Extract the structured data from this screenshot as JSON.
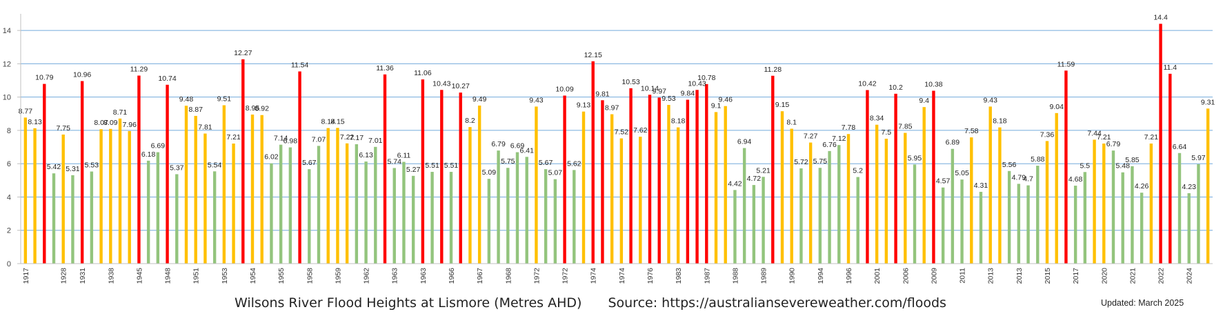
{
  "chart_data": {
    "type": "bar",
    "title": "Wilsons River Flood Heights at Lismore (Metres AHD)",
    "source": "Source: https://australiansevereweather.com/floods",
    "updated": "Updated: March 2025",
    "ylim": [
      0,
      15
    ],
    "yticks": [
      0,
      2,
      4,
      6,
      8,
      10,
      12,
      14
    ],
    "grid": true,
    "colors": {
      "minor": "#93c47d",
      "moderate": "#ffc000",
      "major": "#ff0000",
      "grid": "#5b9bd5"
    },
    "bars": [
      {
        "v": 8.77,
        "c": "moderate"
      },
      {
        "v": 8.13,
        "c": "moderate"
      },
      {
        "v": 10.79,
        "c": "major"
      },
      {
        "v": 5.42,
        "c": "minor"
      },
      {
        "v": 7.75,
        "c": "moderate"
      },
      {
        "v": 5.31,
        "c": "minor"
      },
      {
        "v": 10.96,
        "c": "major"
      },
      {
        "v": 5.53,
        "c": "minor"
      },
      {
        "v": 8.07,
        "c": "moderate"
      },
      {
        "v": 8.09,
        "c": "moderate"
      },
      {
        "v": 8.71,
        "c": "moderate"
      },
      {
        "v": 7.96,
        "c": "moderate"
      },
      {
        "v": 11.29,
        "c": "major"
      },
      {
        "v": 6.18,
        "c": "minor"
      },
      {
        "v": 6.69,
        "c": "minor"
      },
      {
        "v": 10.74,
        "c": "major"
      },
      {
        "v": 5.37,
        "c": "minor"
      },
      {
        "v": 9.48,
        "c": "moderate"
      },
      {
        "v": 8.87,
        "c": "moderate"
      },
      {
        "v": 7.81,
        "c": "moderate"
      },
      {
        "v": 5.54,
        "c": "minor"
      },
      {
        "v": 9.51,
        "c": "moderate"
      },
      {
        "v": 7.21,
        "c": "moderate"
      },
      {
        "v": 12.27,
        "c": "major"
      },
      {
        "v": 8.95,
        "c": "moderate"
      },
      {
        "v": 8.92,
        "c": "moderate"
      },
      {
        "v": 6.02,
        "c": "minor"
      },
      {
        "v": 7.14,
        "c": "minor"
      },
      {
        "v": 6.98,
        "c": "minor"
      },
      {
        "v": 11.54,
        "c": "major"
      },
      {
        "v": 5.67,
        "c": "minor"
      },
      {
        "v": 7.07,
        "c": "minor"
      },
      {
        "v": 8.14,
        "c": "moderate"
      },
      {
        "v": 8.15,
        "c": "moderate"
      },
      {
        "v": 7.22,
        "c": "moderate"
      },
      {
        "v": 7.17,
        "c": "minor"
      },
      {
        "v": 6.13,
        "c": "minor"
      },
      {
        "v": 7.01,
        "c": "minor"
      },
      {
        "v": 11.36,
        "c": "major"
      },
      {
        "v": 5.74,
        "c": "minor"
      },
      {
        "v": 6.11,
        "c": "minor"
      },
      {
        "v": 5.27,
        "c": "minor"
      },
      {
        "v": 11.06,
        "c": "major"
      },
      {
        "v": 5.51,
        "c": "minor"
      },
      {
        "v": 10.43,
        "c": "major"
      },
      {
        "v": 5.51,
        "c": "minor"
      },
      {
        "v": 10.27,
        "c": "major"
      },
      {
        "v": 8.2,
        "c": "moderate"
      },
      {
        "v": 9.49,
        "c": "moderate"
      },
      {
        "v": 5.09,
        "c": "minor"
      },
      {
        "v": 6.79,
        "c": "minor"
      },
      {
        "v": 5.75,
        "c": "minor"
      },
      {
        "v": 6.69,
        "c": "minor"
      },
      {
        "v": 6.41,
        "c": "minor"
      },
      {
        "v": 9.43,
        "c": "moderate"
      },
      {
        "v": 5.67,
        "c": "minor"
      },
      {
        "v": 5.07,
        "c": "minor"
      },
      {
        "v": 10.09,
        "c": "major"
      },
      {
        "v": 5.62,
        "c": "minor"
      },
      {
        "v": 9.13,
        "c": "moderate"
      },
      {
        "v": 12.15,
        "c": "major"
      },
      {
        "v": 9.81,
        "c": "major"
      },
      {
        "v": 8.97,
        "c": "moderate"
      },
      {
        "v": 7.52,
        "c": "moderate"
      },
      {
        "v": 10.53,
        "c": "major"
      },
      {
        "v": 7.62,
        "c": "moderate"
      },
      {
        "v": 10.14,
        "c": "major"
      },
      {
        "v": 9.97,
        "c": "major"
      },
      {
        "v": 9.53,
        "c": "moderate"
      },
      {
        "v": 8.18,
        "c": "moderate"
      },
      {
        "v": 9.84,
        "c": "major"
      },
      {
        "v": 10.43,
        "c": "major"
      },
      {
        "v": 10.78,
        "c": "major"
      },
      {
        "v": 9.1,
        "c": "moderate"
      },
      {
        "v": 9.46,
        "c": "moderate"
      },
      {
        "v": 4.42,
        "c": "minor"
      },
      {
        "v": 6.94,
        "c": "minor"
      },
      {
        "v": 4.72,
        "c": "minor"
      },
      {
        "v": 5.21,
        "c": "minor"
      },
      {
        "v": 11.28,
        "c": "major"
      },
      {
        "v": 9.15,
        "c": "moderate"
      },
      {
        "v": 8.1,
        "c": "moderate"
      },
      {
        "v": 5.72,
        "c": "minor"
      },
      {
        "v": 7.27,
        "c": "moderate"
      },
      {
        "v": 5.75,
        "c": "minor"
      },
      {
        "v": 6.76,
        "c": "minor"
      },
      {
        "v": 7.12,
        "c": "minor"
      },
      {
        "v": 7.78,
        "c": "moderate"
      },
      {
        "v": 5.2,
        "c": "minor"
      },
      {
        "v": 10.42,
        "c": "major"
      },
      {
        "v": 8.34,
        "c": "moderate"
      },
      {
        "v": 7.5,
        "c": "moderate"
      },
      {
        "v": 10.2,
        "c": "major"
      },
      {
        "v": 7.85,
        "c": "moderate"
      },
      {
        "v": 5.95,
        "c": "minor"
      },
      {
        "v": 9.4,
        "c": "moderate"
      },
      {
        "v": 10.38,
        "c": "major"
      },
      {
        "v": 4.57,
        "c": "minor"
      },
      {
        "v": 6.89,
        "c": "minor"
      },
      {
        "v": 5.05,
        "c": "minor"
      },
      {
        "v": 7.58,
        "c": "moderate"
      },
      {
        "v": 4.31,
        "c": "minor"
      },
      {
        "v": 9.43,
        "c": "moderate"
      },
      {
        "v": 8.18,
        "c": "moderate"
      },
      {
        "v": 5.56,
        "c": "minor"
      },
      {
        "v": 4.79,
        "c": "minor"
      },
      {
        "v": 4.7,
        "c": "minor"
      },
      {
        "v": 5.88,
        "c": "minor"
      },
      {
        "v": 7.36,
        "c": "moderate"
      },
      {
        "v": 9.04,
        "c": "moderate"
      },
      {
        "v": 11.59,
        "c": "major"
      },
      {
        "v": 4.68,
        "c": "minor"
      },
      {
        "v": 5.5,
        "c": "minor"
      },
      {
        "v": 7.44,
        "c": "moderate"
      },
      {
        "v": 7.21,
        "c": "moderate"
      },
      {
        "v": 6.79,
        "c": "minor"
      },
      {
        "v": 5.48,
        "c": "minor"
      },
      {
        "v": 5.85,
        "c": "minor"
      },
      {
        "v": 4.26,
        "c": "minor"
      },
      {
        "v": 7.21,
        "c": "moderate"
      },
      {
        "v": 14.4,
        "c": "major"
      },
      {
        "v": 11.4,
        "c": "major"
      },
      {
        "v": 6.64,
        "c": "minor"
      },
      {
        "v": 4.23,
        "c": "minor"
      },
      {
        "v": 5.97,
        "c": "minor"
      },
      {
        "v": 9.31,
        "c": "moderate"
      }
    ],
    "labels": [
      {
        "v": "8.77",
        "i": 0,
        "ha": "l"
      },
      {
        "v": "8.13",
        "i": 1
      },
      {
        "v": "10.79",
        "i": 2
      },
      {
        "v": "5.42",
        "i": 3
      },
      {
        "v": "7.75",
        "i": 4
      },
      {
        "v": "5.31",
        "i": 5
      },
      {
        "v": "10.96",
        "i": 6
      },
      {
        "v": "5.53",
        "i": 7
      },
      {
        "v": "8.07",
        "i": 8
      },
      {
        "v": "8.09",
        "i": 9
      },
      {
        "v": "8.71",
        "i": 10
      },
      {
        "v": "7.96",
        "i": 11
      },
      {
        "v": "11.29",
        "i": 12
      },
      {
        "v": "6.18",
        "i": 13
      },
      {
        "v": "6.69",
        "i": 14
      },
      {
        "v": "10.74",
        "i": 15
      },
      {
        "v": "5.37",
        "i": 16
      },
      {
        "v": "9.48",
        "i": 17
      },
      {
        "v": "8.87",
        "i": 18
      },
      {
        "v": "7.81",
        "i": 19
      },
      {
        "v": "5.54",
        "i": 20
      },
      {
        "v": "9.51",
        "i": 21
      },
      {
        "v": "7.21",
        "i": 22
      },
      {
        "v": "12.27",
        "i": 23
      },
      {
        "v": "8.95",
        "i": 24
      },
      {
        "v": "8.92",
        "i": 25
      },
      {
        "v": "6.02",
        "i": 26
      },
      {
        "v": "7.14",
        "i": 27
      },
      {
        "v": "6.98",
        "i": 28
      },
      {
        "v": "11.54",
        "i": 29
      },
      {
        "v": "5.67",
        "i": 30
      },
      {
        "v": "7.07",
        "i": 31
      },
      {
        "v": "8.14",
        "i": 32
      },
      {
        "v": "8.15",
        "i": 33
      },
      {
        "v": "7.22",
        "i": 34
      },
      {
        "v": "7.17",
        "i": 35
      },
      {
        "v": "6.13",
        "i": 36
      },
      {
        "v": "7.01",
        "i": 37
      },
      {
        "v": "11.36",
        "i": 38
      },
      {
        "v": "5.74",
        "i": 39
      },
      {
        "v": "6.11",
        "i": 40
      },
      {
        "v": "5.27",
        "i": 41
      },
      {
        "v": "11.06",
        "i": 42
      },
      {
        "v": "5.51",
        "i": 43
      },
      {
        "v": "10.43",
        "i": 44
      },
      {
        "v": "5.51",
        "i": 45
      },
      {
        "v": "10.27",
        "i": 46
      },
      {
        "v": "8.2",
        "i": 47
      },
      {
        "v": "9.49",
        "i": 48
      },
      {
        "v": "5.09",
        "i": 49
      },
      {
        "v": "6.79",
        "i": 50
      },
      {
        "v": "5.75",
        "i": 51
      },
      {
        "v": "6.69",
        "i": 52
      },
      {
        "v": "6.41",
        "i": 53
      },
      {
        "v": "9.43",
        "i": 54
      },
      {
        "v": "5.67",
        "i": 55
      },
      {
        "v": "5.07",
        "i": 56
      },
      {
        "v": "10.09",
        "i": 57
      },
      {
        "v": "5.62",
        "i": 58
      },
      {
        "v": "9.13",
        "i": 59
      },
      {
        "v": "12.15",
        "i": 60
      },
      {
        "v": "9.81",
        "i": 61
      },
      {
        "v": "8.97",
        "i": 62
      },
      {
        "v": "7.52",
        "i": 63
      },
      {
        "v": "10.53",
        "i": 64
      },
      {
        "v": "7.62",
        "i": 65
      },
      {
        "v": "10.14",
        "i": 66
      },
      {
        "v": "9.97",
        "i": 67
      },
      {
        "v": "9.53",
        "i": 68
      },
      {
        "v": "8.18",
        "i": 69
      },
      {
        "v": "9.84",
        "i": 70
      },
      {
        "v": "10.43",
        "i": 71
      },
      {
        "v": "10.78",
        "i": 72
      },
      {
        "v": "9.1",
        "i": 73
      },
      {
        "v": "9.46",
        "i": 74
      },
      {
        "v": "4.42",
        "i": 75
      },
      {
        "v": "6.94",
        "i": 76
      },
      {
        "v": "4.72",
        "i": 77
      },
      {
        "v": "5.21",
        "i": 78
      },
      {
        "v": "11.28",
        "i": 79
      },
      {
        "v": "9.15",
        "i": 80
      },
      {
        "v": "8.1",
        "i": 81
      },
      {
        "v": "5.72",
        "i": 82
      },
      {
        "v": "7.27",
        "i": 83
      },
      {
        "v": "5.75",
        "i": 84
      },
      {
        "v": "6.76",
        "i": 85
      },
      {
        "v": "7.12",
        "i": 86
      },
      {
        "v": "7.78",
        "i": 87
      },
      {
        "v": "5.2",
        "i": 88
      },
      {
        "v": "10.42",
        "i": 89
      },
      {
        "v": "8.34",
        "i": 90
      },
      {
        "v": "7.5",
        "i": 91
      },
      {
        "v": "10.2",
        "i": 92
      },
      {
        "v": "7.85",
        "i": 93
      },
      {
        "v": "5.95",
        "i": 94
      },
      {
        "v": "9.4",
        "i": 95
      },
      {
        "v": "10.38",
        "i": 96
      },
      {
        "v": "4.57",
        "i": 97
      },
      {
        "v": "6.89",
        "i": 98
      },
      {
        "v": "5.05",
        "i": 99
      },
      {
        "v": "7.58",
        "i": 100
      },
      {
        "v": "4.31",
        "i": 101
      },
      {
        "v": "9.43",
        "i": 102
      },
      {
        "v": "8.18",
        "i": 103
      },
      {
        "v": "5.56",
        "i": 104
      },
      {
        "v": "4.79",
        "i": 105
      },
      {
        "v": "4.7",
        "i": 106
      },
      {
        "v": "5.88",
        "i": 107
      },
      {
        "v": "7.36",
        "i": 108
      },
      {
        "v": "9.04",
        "i": 109
      },
      {
        "v": "11.59",
        "i": 110
      },
      {
        "v": "4.68",
        "i": 111
      },
      {
        "v": "5.5",
        "i": 112
      },
      {
        "v": "7.44",
        "i": 113
      },
      {
        "v": "7.21",
        "i": 114
      },
      {
        "v": "6.79",
        "i": 115
      },
      {
        "v": "5.48",
        "i": 116
      },
      {
        "v": "5.85",
        "i": 117
      },
      {
        "v": "4.26",
        "i": 118
      },
      {
        "v": "7.21",
        "i": 119
      },
      {
        "v": "14.4",
        "i": 120
      },
      {
        "v": "11.4",
        "i": 121
      },
      {
        "v": "6.64",
        "i": 122
      },
      {
        "v": "4.23",
        "i": 123
      },
      {
        "v": "5.97",
        "i": 124
      },
      {
        "v": "9.31",
        "i": 125
      }
    ],
    "xlabels": [
      {
        "t": "1917",
        "i": 0
      },
      {
        "t": "1928",
        "i": 4
      },
      {
        "t": "1931",
        "i": 6
      },
      {
        "t": "1938",
        "i": 9
      },
      {
        "t": "1945",
        "i": 12
      },
      {
        "t": "1948",
        "i": 15
      },
      {
        "t": "1951",
        "i": 18
      },
      {
        "t": "1953",
        "i": 21
      },
      {
        "t": "1954",
        "i": 24
      },
      {
        "t": "1955",
        "i": 27
      },
      {
        "t": "1958",
        "i": 30
      },
      {
        "t": "1959",
        "i": 33
      },
      {
        "t": "1962",
        "i": 36
      },
      {
        "t": "1963",
        "i": 39
      },
      {
        "t": "1963",
        "i": 42
      },
      {
        "t": "1966",
        "i": 45
      },
      {
        "t": "1967",
        "i": 48
      },
      {
        "t": "1968",
        "i": 51
      },
      {
        "t": "1972",
        "i": 54
      },
      {
        "t": "1972",
        "i": 57
      },
      {
        "t": "1974",
        "i": 60
      },
      {
        "t": "1974",
        "i": 63
      },
      {
        "t": "1976",
        "i": 66
      },
      {
        "t": "1983",
        "i": 69
      },
      {
        "t": "1987",
        "i": 72
      },
      {
        "t": "1988",
        "i": 75
      },
      {
        "t": "1989",
        "i": 78
      },
      {
        "t": "1990",
        "i": 81
      },
      {
        "t": "1994",
        "i": 84
      },
      {
        "t": "1996",
        "i": 87
      },
      {
        "t": "2001",
        "i": 90
      },
      {
        "t": "2006",
        "i": 93
      },
      {
        "t": "2009",
        "i": 96
      },
      {
        "t": "2011",
        "i": 99
      },
      {
        "t": "2013",
        "i": 102
      },
      {
        "t": "2013",
        "i": 105
      },
      {
        "t": "2015",
        "i": 108
      },
      {
        "t": "2017",
        "i": 111
      },
      {
        "t": "2020",
        "i": 114
      },
      {
        "t": "2021",
        "i": 117
      },
      {
        "t": "2022",
        "i": 120
      },
      {
        "t": "2024",
        "i": 123
      }
    ]
  }
}
